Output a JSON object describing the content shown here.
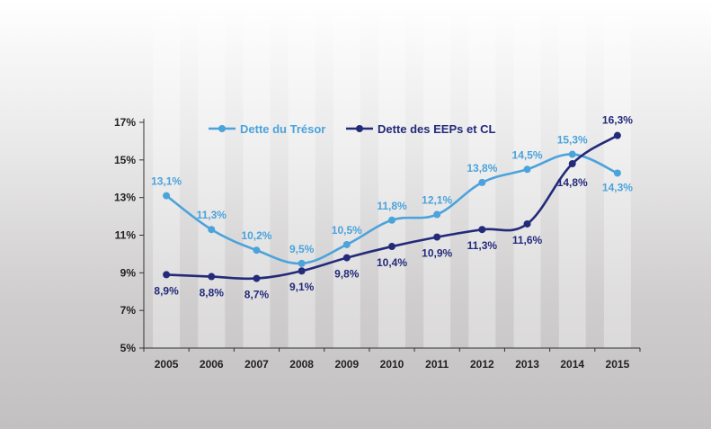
{
  "chart_data": {
    "type": "line",
    "title": "",
    "xlabel": "",
    "ylabel": "",
    "categories": [
      "2005",
      "2006",
      "2007",
      "2008",
      "2009",
      "2010",
      "2011",
      "2012",
      "2013",
      "2014",
      "2015"
    ],
    "ylim": [
      5,
      17
    ],
    "yticks": [
      5,
      7,
      9,
      11,
      13,
      15,
      17
    ],
    "ytick_labels": [
      "5%",
      "7%",
      "9%",
      "11%",
      "13%",
      "15%",
      "17%"
    ],
    "legend_position": "top-left",
    "series": [
      {
        "name": "Dette du Trésor",
        "color": "#4ba3dc",
        "values": [
          13.1,
          11.3,
          10.2,
          9.5,
          10.5,
          11.8,
          12.1,
          13.8,
          14.5,
          15.3,
          14.3
        ],
        "labels": [
          "13,1%",
          "11,3%",
          "10,2%",
          "9,5%",
          "10,5%",
          "11,8%",
          "12,1%",
          "13,8%",
          "14,5%",
          "15,3%",
          "14,3%"
        ]
      },
      {
        "name": "Dette des EEPs et CL",
        "color": "#232a7a",
        "values": [
          8.9,
          8.8,
          8.7,
          9.1,
          9.8,
          10.4,
          10.9,
          11.3,
          11.6,
          14.8,
          16.3
        ],
        "labels": [
          "8,9%",
          "8,8%",
          "8,7%",
          "9,1%",
          "9,8%",
          "10,4%",
          "10,9%",
          "11,3%",
          "11,6%",
          "14,8%",
          "16,3%"
        ]
      }
    ]
  }
}
